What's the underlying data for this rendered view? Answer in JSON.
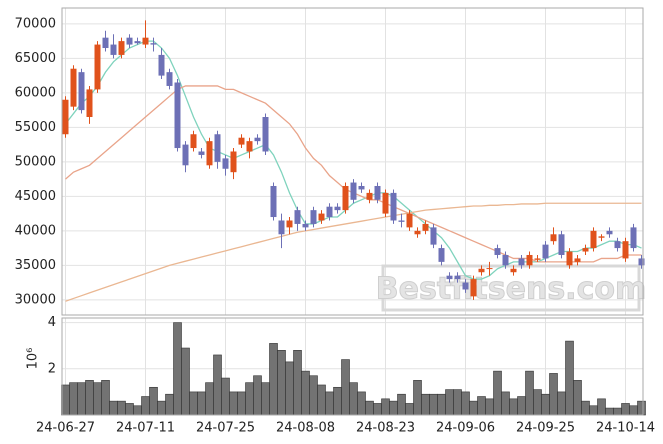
{
  "chart_data": [
    {
      "type": "candlestick",
      "up_color": "#e0521c",
      "down_color": "#6d70b6",
      "ylim": [
        27800,
        72300
      ],
      "yticks": [
        30000,
        35000,
        40000,
        45000,
        50000,
        55000,
        60000,
        65000,
        70000
      ],
      "grid": true,
      "watermark": "Bestfitsens.com",
      "open": [
        54000,
        58000,
        63000,
        56500,
        60500,
        68000,
        67000,
        65500,
        68000,
        67500,
        67000,
        67200,
        65500,
        63000,
        61500,
        52500,
        52000,
        51500,
        49500,
        54000,
        50500,
        48500,
        52500,
        51500,
        53500,
        56500,
        46500,
        41500,
        40500,
        43000,
        41000,
        43000,
        41500,
        43500,
        43500,
        43000,
        47000,
        46500,
        44500,
        46500,
        42500,
        45500,
        41500,
        40500,
        39500,
        40000,
        40500,
        37500,
        33500,
        33500,
        32500,
        30500,
        34000,
        34500,
        37500,
        36500,
        34000,
        36000,
        35000,
        35800,
        38000,
        38500,
        39500,
        35000,
        35500,
        37000,
        37500,
        39000,
        40000,
        38500,
        36000,
        40500,
        36000
      ],
      "high": [
        59500,
        64000,
        63500,
        61000,
        67500,
        69000,
        68500,
        68000,
        68500,
        68000,
        70500,
        68000,
        66500,
        63500,
        62000,
        53000,
        54500,
        52000,
        53500,
        54500,
        51000,
        52000,
        54000,
        53500,
        54000,
        57000,
        47000,
        42500,
        42000,
        43500,
        41500,
        43500,
        43000,
        44000,
        44000,
        47000,
        47500,
        47000,
        46000,
        47000,
        46000,
        46000,
        42500,
        43000,
        40500,
        41500,
        41000,
        38000,
        34000,
        34000,
        33000,
        33500,
        35000,
        35500,
        38000,
        37000,
        35000,
        36500,
        37000,
        36500,
        38500,
        40500,
        40000,
        37500,
        36500,
        38000,
        40500,
        39500,
        40500,
        39000,
        39000,
        41000,
        36500
      ],
      "low": [
        53500,
        57500,
        57000,
        55500,
        60000,
        66000,
        65000,
        65000,
        66500,
        67000,
        66500,
        66000,
        62000,
        60500,
        51500,
        48500,
        51500,
        50500,
        49000,
        49000,
        48000,
        47500,
        52000,
        50500,
        52500,
        51000,
        41500,
        37500,
        39500,
        40000,
        40000,
        40500,
        41000,
        41500,
        42500,
        42500,
        44000,
        45500,
        44000,
        44000,
        42000,
        41000,
        40500,
        40000,
        39000,
        39500,
        37500,
        35000,
        32500,
        32500,
        31000,
        30000,
        33500,
        33500,
        36000,
        34500,
        33500,
        34500,
        34500,
        35500,
        35500,
        38000,
        36000,
        34500,
        35000,
        36500,
        37000,
        38500,
        39000,
        37000,
        35500,
        37000,
        34500
      ],
      "close": [
        59000,
        63500,
        57500,
        60500,
        67000,
        66500,
        65500,
        67500,
        67000,
        67200,
        68000,
        67000,
        62500,
        61000,
        52000,
        49500,
        54000,
        51000,
        53000,
        50000,
        49000,
        51500,
        53500,
        53000,
        53000,
        51500,
        42000,
        39500,
        41500,
        41000,
        40500,
        41000,
        42500,
        42000,
        43000,
        46500,
        44500,
        46000,
        45500,
        44500,
        45500,
        41500,
        41300,
        42500,
        40000,
        41000,
        38000,
        35500,
        33000,
        33000,
        31500,
        33000,
        34500,
        34600,
        36500,
        35000,
        34500,
        35000,
        36500,
        36000,
        36000,
        39500,
        36500,
        37000,
        36000,
        37500,
        40000,
        39200,
        39500,
        37500,
        38500,
        37500,
        35000
      ],
      "lines": [
        {
          "color": "#7fd3bd",
          "values": [
            55500,
            57000,
            58500,
            59500,
            61000,
            63000,
            64500,
            65500,
            66500,
            67000,
            67500,
            67500,
            66500,
            65000,
            62500,
            59500,
            56500,
            54000,
            52000,
            51500,
            51000,
            50500,
            51000,
            51500,
            52000,
            52500,
            51000,
            48500,
            45500,
            43000,
            41000,
            41000,
            41500,
            42000,
            42000,
            43000,
            44000,
            44500,
            45000,
            45500,
            45500,
            45000,
            44000,
            43000,
            42000,
            41000,
            40000,
            39000,
            37500,
            35500,
            33500,
            33000,
            33000,
            33500,
            34500,
            35000,
            35500,
            35500,
            35500,
            35500,
            36000,
            36500,
            37000,
            37000,
            37000,
            37500,
            37500,
            38000,
            38500,
            38500,
            38000,
            38000,
            37500
          ]
        },
        {
          "color": "#e9a48a",
          "values": [
            47500,
            48500,
            49000,
            49500,
            50500,
            51500,
            52500,
            53500,
            54500,
            55500,
            56500,
            57500,
            58500,
            59500,
            60500,
            61000,
            61000,
            61000,
            61000,
            61000,
            60500,
            60500,
            60000,
            59500,
            59000,
            58500,
            57500,
            56500,
            55500,
            54000,
            52000,
            50500,
            49500,
            48000,
            47000,
            46000,
            45500,
            45000,
            44500,
            44500,
            44000,
            43500,
            43000,
            42500,
            42000,
            41500,
            41000,
            40500,
            40000,
            39500,
            39000,
            38500,
            38000,
            37500,
            37000,
            36500,
            36000,
            36000,
            36000,
            35500,
            35500,
            35500,
            35500,
            35500,
            35500,
            35500,
            35500,
            36000,
            36000,
            36000,
            36500,
            36500,
            36500
          ]
        },
        {
          "color": "#eab792",
          "values": [
            29800,
            30200,
            30600,
            31000,
            31400,
            31800,
            32200,
            32600,
            33000,
            33400,
            33800,
            34200,
            34600,
            35000,
            35300,
            35600,
            35900,
            36200,
            36500,
            36800,
            37100,
            37400,
            37700,
            38000,
            38300,
            38600,
            38900,
            39200,
            39500,
            39800,
            40000,
            40200,
            40400,
            40600,
            40800,
            41000,
            41200,
            41400,
            41600,
            41800,
            42000,
            42200,
            42400,
            42600,
            42800,
            43000,
            43100,
            43200,
            43300,
            43400,
            43500,
            43600,
            43600,
            43700,
            43700,
            43800,
            43800,
            43900,
            43900,
            43900,
            44000,
            44000,
            44000,
            44000,
            44000,
            44000,
            44000,
            44000,
            44000,
            44000,
            44000,
            44000,
            44000
          ]
        }
      ]
    },
    {
      "type": "bar",
      "color": "#737373",
      "ylim": [
        0,
        4.2
      ],
      "yticks": [
        2,
        4
      ],
      "grid": true,
      "y_label": "10⁶",
      "categories": [
        "24-06-27",
        null,
        null,
        null,
        null,
        null,
        null,
        null,
        null,
        null,
        "24-07-11",
        null,
        null,
        null,
        null,
        null,
        null,
        null,
        null,
        null,
        "24-07-25",
        null,
        null,
        null,
        null,
        null,
        null,
        null,
        null,
        null,
        "24-08-08",
        null,
        null,
        null,
        null,
        null,
        null,
        null,
        null,
        null,
        "24-08-23",
        null,
        null,
        null,
        null,
        null,
        null,
        null,
        null,
        null,
        "24-09-06",
        null,
        null,
        null,
        null,
        null,
        null,
        null,
        null,
        null,
        "24-09-25",
        null,
        null,
        null,
        null,
        null,
        null,
        null,
        null,
        null,
        "24-10-14",
        null,
        null
      ],
      "values": [
        1.3,
        1.4,
        1.4,
        1.5,
        1.4,
        1.5,
        0.6,
        0.6,
        0.5,
        0.4,
        0.8,
        1.2,
        0.6,
        0.9,
        4.0,
        2.9,
        1.0,
        1.0,
        1.4,
        2.6,
        1.6,
        1.0,
        1.0,
        1.4,
        1.7,
        1.4,
        3.1,
        2.8,
        2.3,
        2.8,
        1.9,
        1.7,
        1.3,
        1.0,
        1.2,
        2.4,
        1.4,
        1.0,
        0.6,
        0.5,
        0.7,
        0.6,
        0.9,
        0.5,
        1.5,
        0.9,
        0.9,
        0.9,
        1.1,
        1.1,
        1.0,
        0.6,
        0.8,
        0.7,
        1.9,
        1.0,
        0.7,
        0.8,
        1.9,
        1.1,
        0.9,
        1.8,
        1.0,
        3.2,
        1.5,
        0.6,
        0.4,
        0.7,
        0.3,
        0.3,
        0.5,
        0.4,
        0.6
      ]
    }
  ]
}
